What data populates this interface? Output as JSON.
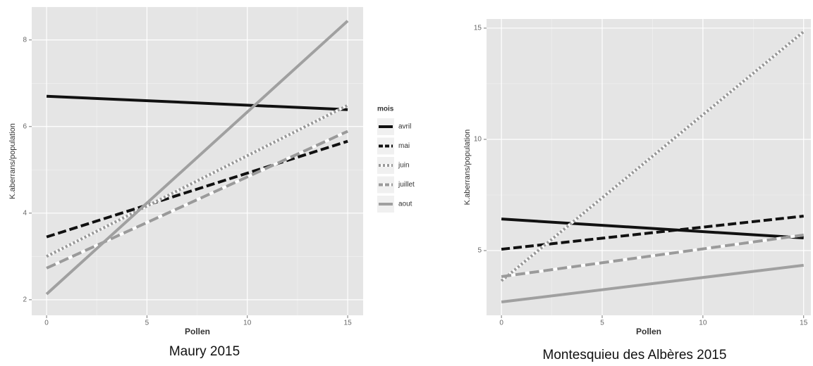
{
  "chart_data": [
    {
      "type": "line",
      "caption": "Maury 2015",
      "x_label": "Pollen",
      "y_label": "K.aberrans/population",
      "x": [
        0,
        15
      ],
      "xlim": [
        -0.74,
        15.77
      ],
      "ylim": [
        1.64,
        8.76
      ],
      "xticks": [
        0,
        5,
        10,
        15
      ],
      "yticks": [
        2,
        4,
        6,
        8
      ],
      "grid": true,
      "legend": "right",
      "legend_title": "mois",
      "series": [
        {
          "name": "avril",
          "color": "#111111",
          "dash": "solid",
          "values": [
            6.7,
            6.39
          ]
        },
        {
          "name": "mai",
          "color": "#111111",
          "dash": "dashed",
          "values": [
            3.45,
            5.66
          ]
        },
        {
          "name": "juin",
          "color": "#999999",
          "dash": "dotted",
          "values": [
            3.0,
            6.49
          ]
        },
        {
          "name": "juillet",
          "color": "#9a9a9a",
          "dash": "longdash",
          "values": [
            2.73,
            5.89
          ]
        },
        {
          "name": "aout",
          "color": "#a0a0a0",
          "dash": "solid",
          "values": [
            2.13,
            8.44
          ]
        }
      ]
    },
    {
      "type": "line",
      "caption": "Montesquieu des Albères 2015",
      "x_label": "Pollen",
      "y_label": "K.aberrans/population",
      "x": [
        0,
        15
      ],
      "xlim": [
        -0.74,
        15.36
      ],
      "ylim": [
        2.09,
        15.41
      ],
      "xticks": [
        0,
        5,
        10,
        15
      ],
      "yticks": [
        5,
        10,
        15
      ],
      "grid": true,
      "series": [
        {
          "color": "#111111",
          "dash": "solid",
          "values": [
            6.42,
            5.57
          ]
        },
        {
          "color": "#111111",
          "dash": "dashed",
          "values": [
            5.06,
            6.55
          ]
        },
        {
          "color": "#999999",
          "dash": "dotted",
          "values": [
            3.64,
            14.84
          ]
        },
        {
          "color": "#9a9a9a",
          "dash": "longdash",
          "values": [
            3.83,
            5.7
          ]
        },
        {
          "color": "#a0a0a0",
          "dash": "solid",
          "values": [
            2.69,
            4.34
          ]
        }
      ]
    }
  ]
}
